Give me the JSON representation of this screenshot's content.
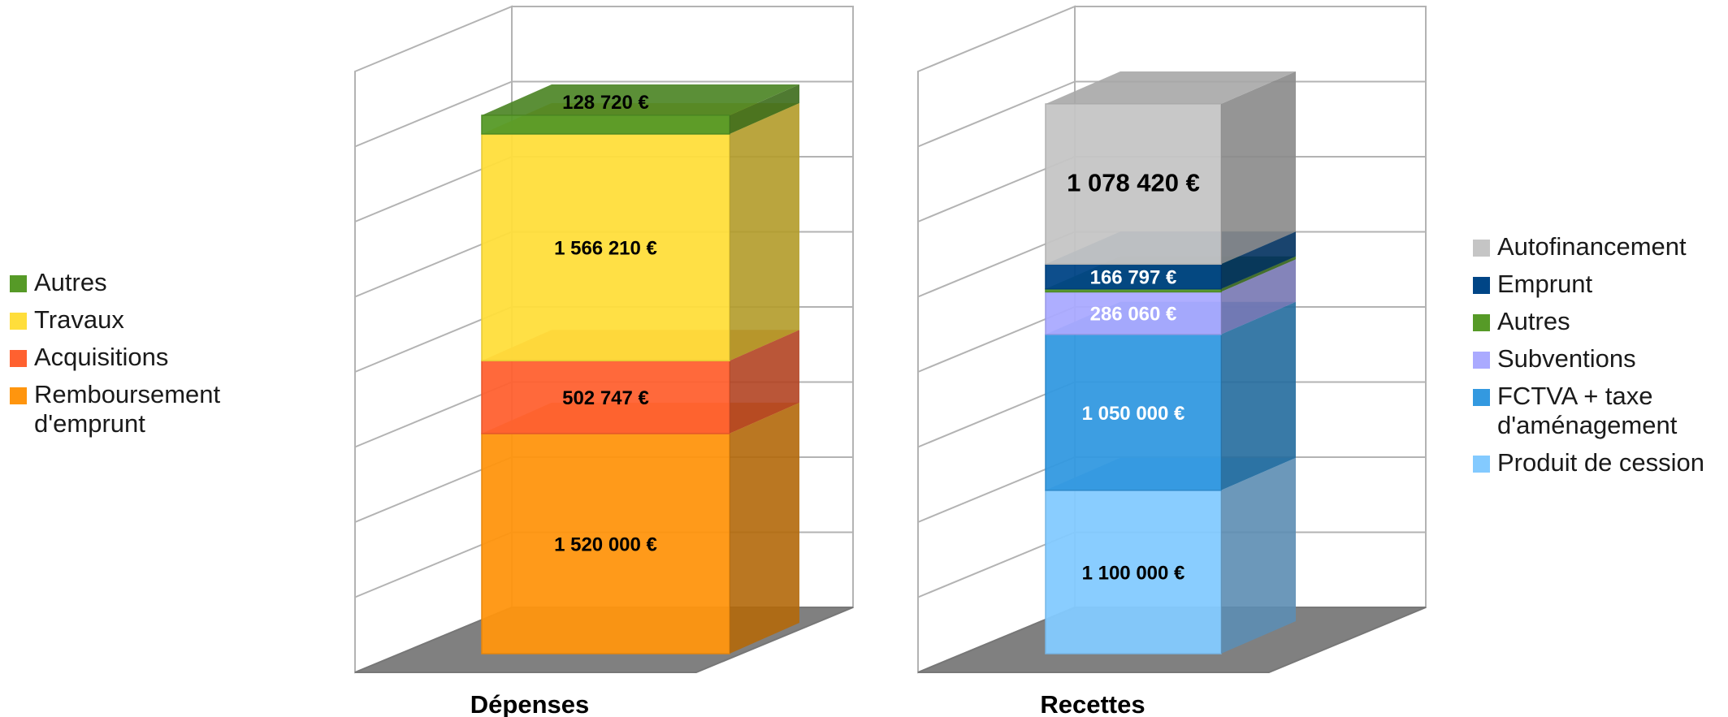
{
  "chart_data": [
    {
      "type": "bar",
      "stacked": true,
      "three_d": true,
      "xlabel": "Dépenses",
      "unit": "€",
      "series": [
        {
          "name": "Remboursement d'emprunt",
          "value": 1520000,
          "label": "1 520 000 €",
          "color": "#ff950e"
        },
        {
          "name": "Acquisitions",
          "value": 502747,
          "label": "502 747 €",
          "color": "#ff6130"
        },
        {
          "name": "Travaux",
          "value": 1566210,
          "label": "1 566 210 €",
          "color": "#ffde3b"
        },
        {
          "name": "Autres",
          "value": 128720,
          "label": "128 720 €",
          "color": "#569a27"
        }
      ],
      "legend": [
        "Autres",
        "Travaux",
        "Acquisitions",
        "Remboursement d'emprunt"
      ],
      "legend_placement": "left",
      "grid": true
    },
    {
      "type": "bar",
      "stacked": true,
      "three_d": true,
      "xlabel": "Recettes",
      "unit": "€",
      "series": [
        {
          "name": "Produit de cession",
          "value": 1100000,
          "label": "1 100 000 €",
          "color": "#83caff"
        },
        {
          "name": "FCTVA + taxe d'aménagement",
          "value": 1050000,
          "label": "1 050 000 €",
          "color": "#3399e0"
        },
        {
          "name": "Subventions",
          "value": 286060,
          "label": "286 060 €",
          "color": "#aaaaff"
        },
        {
          "name": "Autres",
          "value": 20000,
          "label": "",
          "color": "#569a27"
        },
        {
          "name": "Emprunt",
          "value": 166797,
          "label": "166 797 €",
          "color": "#004586"
        },
        {
          "name": "Autofinancement",
          "value": 1078420,
          "label": "1 078 420 €",
          "color": "#c5c5c5"
        }
      ],
      "legend": [
        "Autofinancement",
        "Emprunt",
        "Autres",
        "Subventions",
        "FCTVA + taxe d'aménagement",
        "Produit de cession"
      ],
      "legend_placement": "right",
      "grid": true
    }
  ],
  "legends": {
    "left": [
      {
        "lines": [
          "Autres"
        ],
        "color": "#569a27"
      },
      {
        "lines": [
          "Travaux"
        ],
        "color": "#ffde3b"
      },
      {
        "lines": [
          "Acquisitions"
        ],
        "color": "#ff6130"
      },
      {
        "lines": [
          "Remboursement",
          "d'emprunt"
        ],
        "color": "#ff950e"
      }
    ],
    "right": [
      {
        "lines": [
          "Autofinancement"
        ],
        "color": "#c5c5c5"
      },
      {
        "lines": [
          "Emprunt"
        ],
        "color": "#004586"
      },
      {
        "lines": [
          "Autres"
        ],
        "color": "#569a27"
      },
      {
        "lines": [
          "Subventions"
        ],
        "color": "#aaaaff"
      },
      {
        "lines": [
          "FCTVA + taxe",
          "d'aménagement"
        ],
        "color": "#3399e0"
      },
      {
        "lines": [
          "Produit de cession"
        ],
        "color": "#83caff"
      }
    ]
  }
}
